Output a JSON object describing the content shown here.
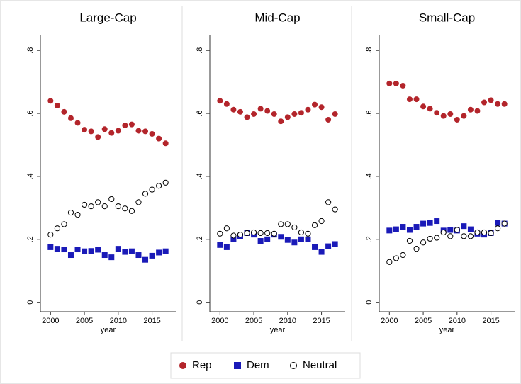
{
  "chart_data": {
    "type": "scatter",
    "x": [
      2000,
      2001,
      2002,
      2003,
      2004,
      2005,
      2006,
      2007,
      2008,
      2009,
      2010,
      2011,
      2012,
      2013,
      2014,
      2015,
      2016,
      2017
    ],
    "xlim": [
      1998.5,
      2018.5
    ],
    "xticks": [
      2000,
      2005,
      2010,
      2015
    ],
    "x_label": "year",
    "ylim": [
      -0.03,
      0.85
    ],
    "yticks": [
      0,
      {
        "value": 0.2,
        "label": ".2"
      },
      {
        "value": 0.4,
        "label": ".4"
      },
      {
        "value": 0.6,
        "label": ".6"
      },
      {
        "value": 0.8,
        "label": ".8"
      }
    ],
    "legend": [
      {
        "name": "Rep",
        "color": "#b3252b",
        "marker": "circle"
      },
      {
        "name": "Dem",
        "color": "#1a1ab8",
        "marker": "square"
      },
      {
        "name": "Neutral",
        "color": "#000000",
        "marker": "hollow-circle"
      }
    ],
    "panels": [
      {
        "title": "Large-Cap",
        "series": [
          {
            "values": [
              0.64,
              0.625,
              0.605,
              0.585,
              0.57,
              0.548,
              0.543,
              0.525,
              0.55,
              0.538,
              0.545,
              0.562,
              0.565,
              0.545,
              0.543,
              0.535,
              0.52,
              0.505
            ]
          },
          {
            "values": [
              0.175,
              0.17,
              0.168,
              0.15,
              0.168,
              0.162,
              0.163,
              0.167,
              0.15,
              0.143,
              0.17,
              0.16,
              0.162,
              0.15,
              0.135,
              0.148,
              0.158,
              0.162
            ]
          },
          {
            "values": [
              0.215,
              0.235,
              0.248,
              0.285,
              0.278,
              0.31,
              0.305,
              0.318,
              0.305,
              0.328,
              0.305,
              0.298,
              0.29,
              0.318,
              0.345,
              0.358,
              0.37,
              0.38
            ]
          }
        ]
      },
      {
        "title": "Mid-Cap",
        "series": [
          {
            "values": [
              0.64,
              0.63,
              0.612,
              0.605,
              0.588,
              0.598,
              0.615,
              0.608,
              0.598,
              0.575,
              0.588,
              0.598,
              0.602,
              0.612,
              0.628,
              0.62,
              0.58,
              0.598
            ]
          },
          {
            "values": [
              0.182,
              0.175,
              0.2,
              0.21,
              0.22,
              0.215,
              0.195,
              0.2,
              0.215,
              0.208,
              0.198,
              0.19,
              0.2,
              0.2,
              0.175,
              0.16,
              0.178,
              0.185
            ]
          },
          {
            "values": [
              0.218,
              0.235,
              0.212,
              0.215,
              0.22,
              0.222,
              0.22,
              0.22,
              0.218,
              0.248,
              0.248,
              0.238,
              0.222,
              0.218,
              0.245,
              0.258,
              0.318,
              0.295
            ]
          }
        ]
      },
      {
        "title": "Small-Cap",
        "series": [
          {
            "values": [
              0.695,
              0.695,
              0.688,
              0.645,
              0.645,
              0.622,
              0.615,
              0.602,
              0.592,
              0.598,
              0.58,
              0.592,
              0.612,
              0.608,
              0.635,
              0.642,
              0.63,
              0.63
            ]
          },
          {
            "values": [
              0.228,
              0.232,
              0.24,
              0.23,
              0.24,
              0.25,
              0.252,
              0.258,
              0.228,
              0.23,
              0.228,
              0.242,
              0.232,
              0.218,
              0.215,
              0.22,
              0.252,
              0.25
            ]
          },
          {
            "values": [
              0.128,
              0.14,
              0.15,
              0.195,
              0.17,
              0.19,
              0.202,
              0.205,
              0.222,
              0.21,
              0.23,
              0.21,
              0.21,
              0.222,
              0.222,
              0.22,
              0.235,
              0.25
            ]
          }
        ]
      }
    ]
  }
}
